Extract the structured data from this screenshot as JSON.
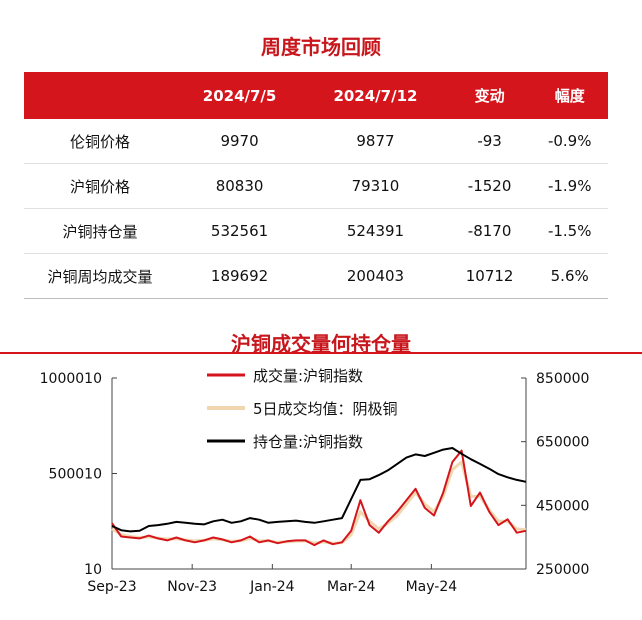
{
  "review": {
    "title": "周度市场回顾",
    "headers": [
      "",
      "2024/7/5",
      "2024/7/12",
      "变动",
      "幅度"
    ],
    "rows": [
      {
        "label": "伦铜价格",
        "v1": "9970",
        "v2": "9877",
        "change": "-93",
        "pct": "-0.9%"
      },
      {
        "label": "沪铜价格",
        "v1": "80830",
        "v2": "79310",
        "change": "-1520",
        "pct": "-1.9%"
      },
      {
        "label": "沪铜持仓量",
        "v1": "532561",
        "v2": "524391",
        "change": "-8170",
        "pct": "-1.5%"
      },
      {
        "label": "沪铜周均成交量",
        "v1": "189692",
        "v2": "200403",
        "change": "10712",
        "pct": "5.6%"
      }
    ]
  },
  "chart_data": {
    "type": "line",
    "title": "沪铜成交量何持仓量",
    "x_ticks": [
      "Sep-23",
      "Nov-23",
      "Jan-24",
      "Mar-24",
      "May-24"
    ],
    "x_tick_dates": [
      "2023-09-01",
      "2023-11-01",
      "2024-01-01",
      "2024-03-01",
      "2024-05-01"
    ],
    "x_range": [
      "2023-09-01",
      "2024-07-12"
    ],
    "y_left": {
      "ticks": [
        "10",
        "500010",
        "1000010"
      ],
      "range": [
        10,
        1000010
      ]
    },
    "y_right": {
      "ticks": [
        "250000",
        "450000",
        "650000",
        "850000"
      ],
      "range": [
        250000,
        850000
      ]
    },
    "legend_position": "top-center",
    "colors": {
      "volume": "#d5151c",
      "ma5": "#f0d7b0",
      "open_interest": "#000000"
    },
    "series": [
      {
        "name": "成交量:沪铜指数",
        "axis": "left",
        "x": [
          "2023-09-01",
          "2023-09-08",
          "2023-09-15",
          "2023-09-22",
          "2023-09-29",
          "2023-10-06",
          "2023-10-13",
          "2023-10-20",
          "2023-10-27",
          "2023-11-03",
          "2023-11-10",
          "2023-11-17",
          "2023-11-24",
          "2023-12-01",
          "2023-12-08",
          "2023-12-15",
          "2023-12-22",
          "2023-12-29",
          "2024-01-05",
          "2024-01-12",
          "2024-01-19",
          "2024-01-26",
          "2024-02-02",
          "2024-02-09",
          "2024-02-16",
          "2024-02-23",
          "2024-03-01",
          "2024-03-08",
          "2024-03-15",
          "2024-03-22",
          "2024-03-29",
          "2024-04-05",
          "2024-04-12",
          "2024-04-19",
          "2024-04-26",
          "2024-05-03",
          "2024-05-10",
          "2024-05-17",
          "2024-05-24",
          "2024-05-31",
          "2024-06-07",
          "2024-06-14",
          "2024-06-21",
          "2024-06-28",
          "2024-07-05",
          "2024-07-12"
        ],
        "y": [
          240000,
          170000,
          165000,
          160000,
          175000,
          160000,
          150000,
          165000,
          150000,
          140000,
          150000,
          165000,
          155000,
          140000,
          150000,
          170000,
          140000,
          150000,
          135000,
          145000,
          150000,
          150000,
          125000,
          150000,
          130000,
          140000,
          200000,
          360000,
          230000,
          190000,
          250000,
          300000,
          360000,
          420000,
          320000,
          280000,
          400000,
          560000,
          620000,
          330000,
          400000,
          300000,
          230000,
          260000,
          190000,
          200000
        ]
      },
      {
        "name": "5日成交均值：阴极铜",
        "axis": "left",
        "x": [
          "2023-09-01",
          "2023-09-08",
          "2023-09-15",
          "2023-09-22",
          "2023-09-29",
          "2023-10-06",
          "2023-10-13",
          "2023-10-20",
          "2023-10-27",
          "2023-11-03",
          "2023-11-10",
          "2023-11-17",
          "2023-11-24",
          "2023-12-01",
          "2023-12-08",
          "2023-12-15",
          "2023-12-22",
          "2023-12-29",
          "2024-01-05",
          "2024-01-12",
          "2024-01-19",
          "2024-01-26",
          "2024-02-02",
          "2024-02-09",
          "2024-02-16",
          "2024-02-23",
          "2024-03-01",
          "2024-03-08",
          "2024-03-15",
          "2024-03-22",
          "2024-03-29",
          "2024-04-05",
          "2024-04-12",
          "2024-04-19",
          "2024-04-26",
          "2024-05-03",
          "2024-05-10",
          "2024-05-17",
          "2024-05-24",
          "2024-05-31",
          "2024-06-07",
          "2024-06-14",
          "2024-06-21",
          "2024-06-28",
          "2024-07-05",
          "2024-07-12"
        ],
        "y": [
          210000,
          180000,
          170000,
          165000,
          168000,
          162000,
          157000,
          158000,
          152000,
          147000,
          150000,
          158000,
          153000,
          145000,
          148000,
          160000,
          148000,
          147000,
          140000,
          143000,
          146000,
          148000,
          135000,
          142000,
          135000,
          138000,
          180000,
          300000,
          250000,
          210000,
          240000,
          280000,
          340000,
          400000,
          340000,
          300000,
          380000,
          520000,
          560000,
          380000,
          380000,
          310000,
          250000,
          250000,
          210000,
          205000
        ]
      },
      {
        "name": "持仓量:沪铜指数",
        "axis": "right",
        "x": [
          "2023-09-01",
          "2023-09-08",
          "2023-09-15",
          "2023-09-22",
          "2023-09-29",
          "2023-10-06",
          "2023-10-13",
          "2023-10-20",
          "2023-10-27",
          "2023-11-03",
          "2023-11-10",
          "2023-11-17",
          "2023-11-24",
          "2023-12-01",
          "2023-12-08",
          "2023-12-15",
          "2023-12-22",
          "2023-12-29",
          "2024-01-05",
          "2024-01-12",
          "2024-01-19",
          "2024-01-26",
          "2024-02-02",
          "2024-02-09",
          "2024-02-16",
          "2024-02-23",
          "2024-03-01",
          "2024-03-08",
          "2024-03-15",
          "2024-03-22",
          "2024-03-29",
          "2024-04-05",
          "2024-04-12",
          "2024-04-19",
          "2024-04-26",
          "2024-05-03",
          "2024-05-10",
          "2024-05-17",
          "2024-05-24",
          "2024-05-31",
          "2024-06-07",
          "2024-06-14",
          "2024-06-21",
          "2024-06-28",
          "2024-07-05",
          "2024-07-12"
        ],
        "y": [
          385000,
          372000,
          368000,
          370000,
          385000,
          388000,
          392000,
          398000,
          395000,
          392000,
          390000,
          400000,
          405000,
          395000,
          400000,
          410000,
          405000,
          395000,
          398000,
          400000,
          402000,
          398000,
          395000,
          400000,
          405000,
          410000,
          470000,
          530000,
          532000,
          545000,
          560000,
          580000,
          600000,
          610000,
          605000,
          615000,
          625000,
          630000,
          612000,
          595000,
          580000,
          565000,
          548000,
          538000,
          530000,
          524000
        ]
      }
    ]
  }
}
